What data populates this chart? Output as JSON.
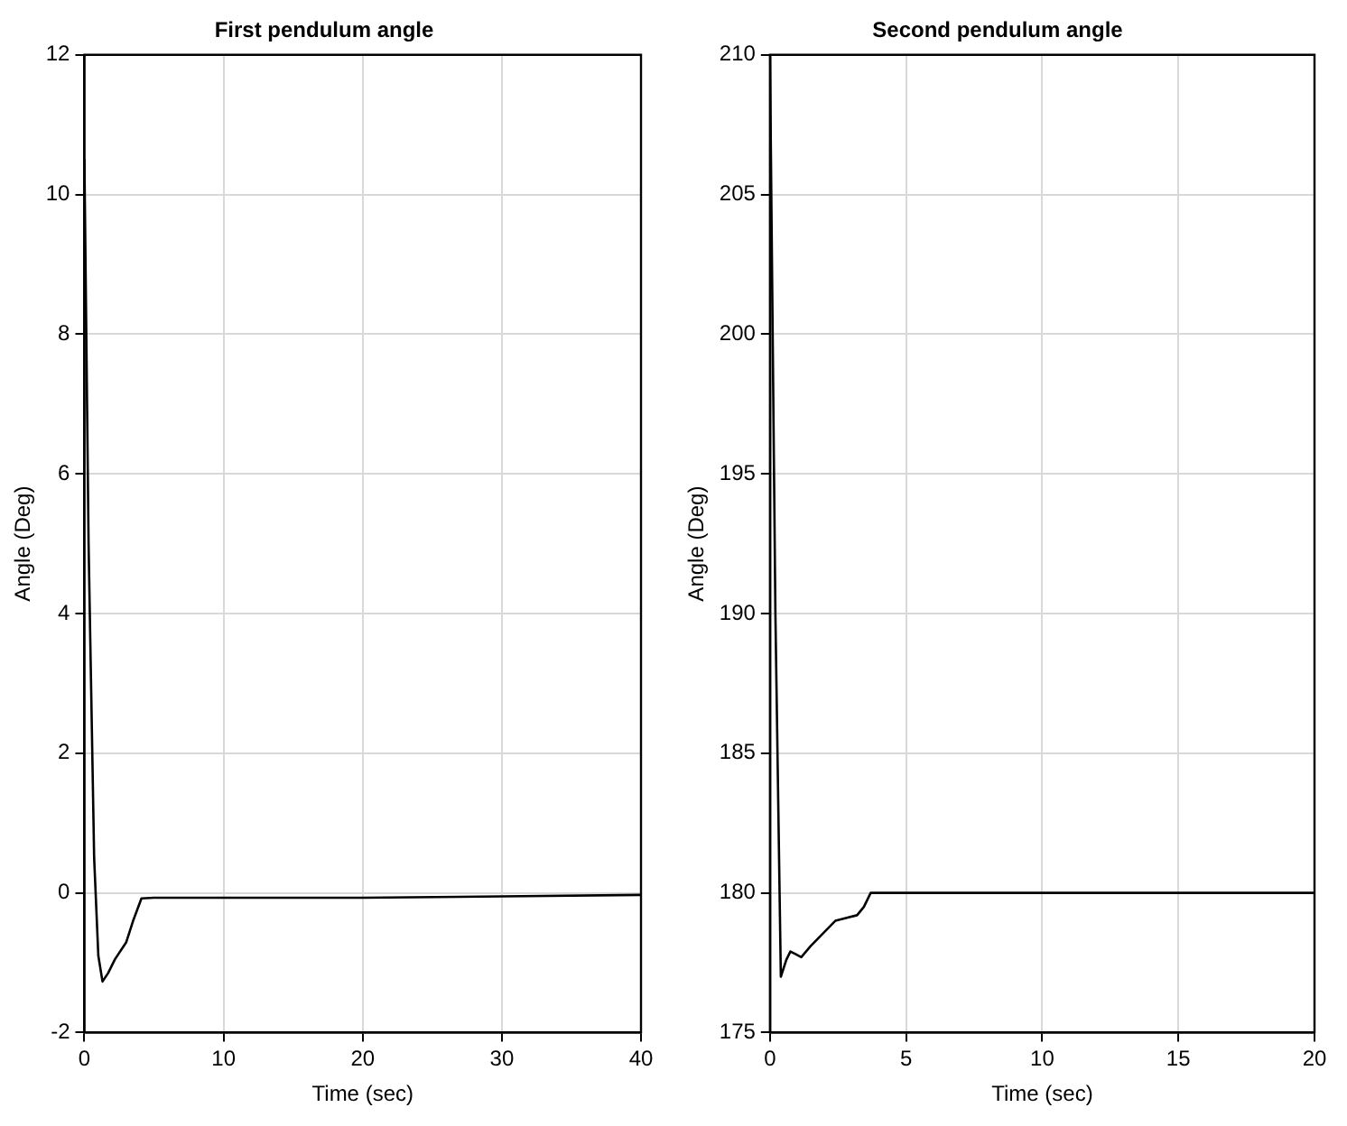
{
  "chart_data": [
    {
      "type": "line",
      "title": "First pendulum angle",
      "xlabel": "Time (sec)",
      "ylabel": "Angle (Deg)",
      "xlim": [
        0,
        40
      ],
      "xticks": [
        0,
        10,
        20,
        30,
        40
      ],
      "ylim": [
        -2,
        12
      ],
      "yticks": [
        -2,
        0,
        2,
        4,
        6,
        8,
        10,
        12
      ],
      "grid": true,
      "marker": "none",
      "line_style": "solid",
      "series": [
        {
          "color": "#000000",
          "x": [
            0,
            0.3,
            0.7,
            1,
            1.3,
            1.7,
            2.2,
            3,
            3.5,
            4.1,
            5,
            10,
            20,
            30,
            40
          ],
          "values": [
            10.5,
            5,
            0.5,
            -0.9,
            -1.27,
            -1.15,
            -0.95,
            -0.71,
            -0.4,
            -0.08,
            -0.07,
            -0.07,
            -0.07,
            -0.05,
            -0.03
          ]
        }
      ]
    },
    {
      "type": "line",
      "title": "Second pendulum angle",
      "xlabel": "Time (sec)",
      "ylabel": "Angle (Deg)",
      "xlim": [
        0,
        20
      ],
      "xticks": [
        0,
        5,
        10,
        15,
        20
      ],
      "ylim": [
        175,
        210
      ],
      "yticks": [
        175,
        180,
        185,
        190,
        195,
        200,
        205,
        210
      ],
      "grid": true,
      "marker": "none",
      "line_style": "solid",
      "series": [
        {
          "color": "#000000",
          "x": [
            0,
            0.2,
            0.4,
            0.6,
            0.75,
            0.95,
            1.15,
            1.5,
            1.8,
            2.4,
            3.2,
            3.45,
            3.7,
            5,
            10,
            15,
            20
          ],
          "values": [
            210,
            190,
            177,
            177.6,
            177.9,
            177.8,
            177.7,
            178.1,
            178.4,
            179,
            179.2,
            179.5,
            180,
            180,
            180,
            180,
            180
          ]
        }
      ]
    }
  ]
}
